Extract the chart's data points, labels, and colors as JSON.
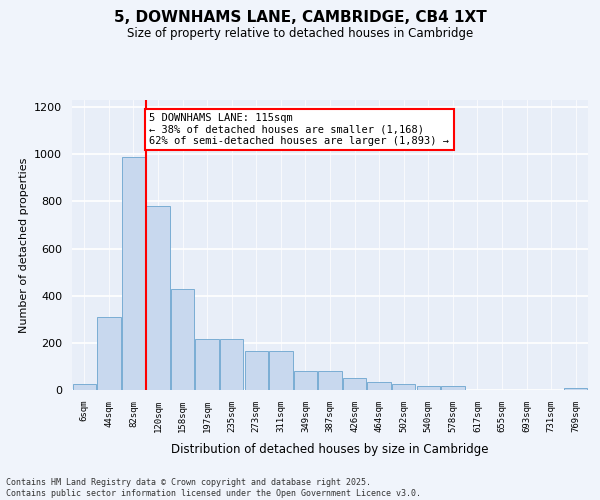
{
  "title_line1": "5, DOWNHAMS LANE, CAMBRIDGE, CB4 1XT",
  "title_line2": "Size of property relative to detached houses in Cambridge",
  "xlabel": "Distribution of detached houses by size in Cambridge",
  "ylabel": "Number of detached properties",
  "categories": [
    "6sqm",
    "44sqm",
    "82sqm",
    "120sqm",
    "158sqm",
    "197sqm",
    "235sqm",
    "273sqm",
    "311sqm",
    "349sqm",
    "387sqm",
    "426sqm",
    "464sqm",
    "502sqm",
    "540sqm",
    "578sqm",
    "617sqm",
    "655sqm",
    "693sqm",
    "731sqm",
    "769sqm"
  ],
  "values": [
    25,
    310,
    990,
    780,
    430,
    215,
    215,
    165,
    165,
    80,
    80,
    50,
    35,
    25,
    15,
    15,
    0,
    0,
    0,
    0,
    10
  ],
  "bar_color": "#c8d8ee",
  "bar_edge_color": "#7aadd4",
  "background_color": "#f0f4fb",
  "plot_bg_color": "#e8eef8",
  "grid_color": "#ffffff",
  "vline_x": 2.5,
  "vline_color": "red",
  "annotation_text": "5 DOWNHAMS LANE: 115sqm\n← 38% of detached houses are smaller (1,168)\n62% of semi-detached houses are larger (1,893) →",
  "annotation_box_color": "white",
  "annotation_box_edge": "red",
  "ylim": [
    0,
    1230
  ],
  "yticks": [
    0,
    200,
    400,
    600,
    800,
    1000,
    1200
  ],
  "footer_line1": "Contains HM Land Registry data © Crown copyright and database right 2025.",
  "footer_line2": "Contains public sector information licensed under the Open Government Licence v3.0."
}
